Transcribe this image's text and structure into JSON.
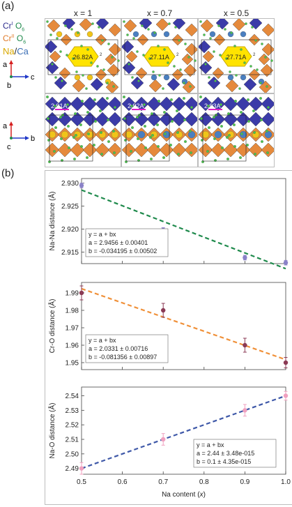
{
  "panel_a": {
    "label": "(a)",
    "columns": [
      "x = 1",
      "x = 0.7",
      "x = 0.5"
    ],
    "legend": {
      "cr1_a": "Cr",
      "cr1_sup": "I",
      "cr1_b": " O",
      "cr1_sub": "6",
      "cr2_a": "Cr",
      "cr2_sup": "II",
      "cr2_b": " O",
      "cr2_sub": "6",
      "na": "Na",
      "slash": "/",
      "ca": "Ca"
    },
    "axes_top": {
      "up": "a",
      "down": "b",
      "right": "c"
    },
    "axes_bottom": {
      "up": "a",
      "down": "c",
      "right": "b"
    },
    "top_labels": [
      "26.82A",
      "27.11A",
      "27.71A"
    ],
    "top_label_sup": "2",
    "bottom_labels": [
      "2.91A",
      "2.92A",
      "2.93A"
    ]
  },
  "panel_b": {
    "label": "(b)"
  },
  "colors": {
    "cr1": "#3b3ba8",
    "cr2": "#e58a3c",
    "na": "#f0c419",
    "ca": "#4a7fc1",
    "o": "#49c94c"
  },
  "chart_data": [
    {
      "type": "scatter",
      "ylabel": "Na-Na distance (Å)",
      "x": [
        0.5,
        0.7,
        0.9,
        1.0
      ],
      "y": [
        2.9295,
        2.9198,
        2.9138,
        2.9127
      ],
      "yerr": [
        0.0005,
        0.0005,
        0.0005,
        0.0005
      ],
      "ylim": [
        2.9125,
        2.931
      ],
      "yticks": [
        "2.915",
        "2.920",
        "2.925",
        "2.930"
      ],
      "ytick_values": [
        2.915,
        2.92,
        2.925,
        2.93
      ],
      "point_color": "#8a82c8",
      "fit_color": "#1f8a4c",
      "fit": {
        "a": 2.9456,
        "b": -0.034195
      },
      "fit_text": [
        "y = a + bx",
        "a = 2.9456 ± 0.00401",
        "b = -0.034195 ± 0.00502"
      ],
      "fit_box": "bottom-left"
    },
    {
      "type": "scatter",
      "ylabel": "Cr-O distance (Å)",
      "x": [
        0.5,
        0.7,
        0.9,
        1.0
      ],
      "y": [
        1.99,
        1.98,
        1.96,
        1.95
      ],
      "yerr": [
        0.004,
        0.004,
        0.004,
        0.003
      ],
      "ylim": [
        1.946,
        1.996
      ],
      "yticks": [
        "1.95",
        "1.96",
        "1.97",
        "1.98",
        "1.99"
      ],
      "ytick_values": [
        1.95,
        1.96,
        1.97,
        1.98,
        1.99
      ],
      "point_color": "#8b3a55",
      "fit_color": "#f0913a",
      "fit": {
        "a": 2.0331,
        "b": -0.081356
      },
      "fit_text": [
        "y = a + bx",
        "a = 2.0331 ± 0.00716",
        "b = -0.081356 ± 0.00897"
      ],
      "fit_box": "bottom-left"
    },
    {
      "type": "scatter",
      "ylabel": "Na-O distance (Å)",
      "xlabel": "Na content (",
      "xlabel_var": "x",
      "xlabel_end": ")",
      "x": [
        0.5,
        0.7,
        0.9,
        1.0
      ],
      "y": [
        2.49,
        2.51,
        2.53,
        2.54
      ],
      "yerr": [
        0.004,
        0.004,
        0.004,
        0.003
      ],
      "ylim": [
        2.486,
        2.546
      ],
      "yticks": [
        "2.49",
        "2.50",
        "2.51",
        "2.52",
        "2.53",
        "2.54"
      ],
      "ytick_values": [
        2.49,
        2.5,
        2.51,
        2.52,
        2.53,
        2.54
      ],
      "xlim": [
        0.5,
        1.0
      ],
      "xticks": [
        "0.5",
        "0.6",
        "0.7",
        "0.8",
        "0.9",
        "1.0"
      ],
      "xtick_values": [
        0.5,
        0.6,
        0.7,
        0.8,
        0.9,
        1.0
      ],
      "point_color": "#f0a0bf",
      "fit_color": "#3e58a8",
      "fit": {
        "a": 2.44,
        "b": 0.1
      },
      "fit_text": [
        "y = a + bx",
        "a = 2.44 ± 3.48e-015",
        "b = 0.1 ± 4.35e-015"
      ],
      "fit_box": "bottom-right"
    }
  ]
}
